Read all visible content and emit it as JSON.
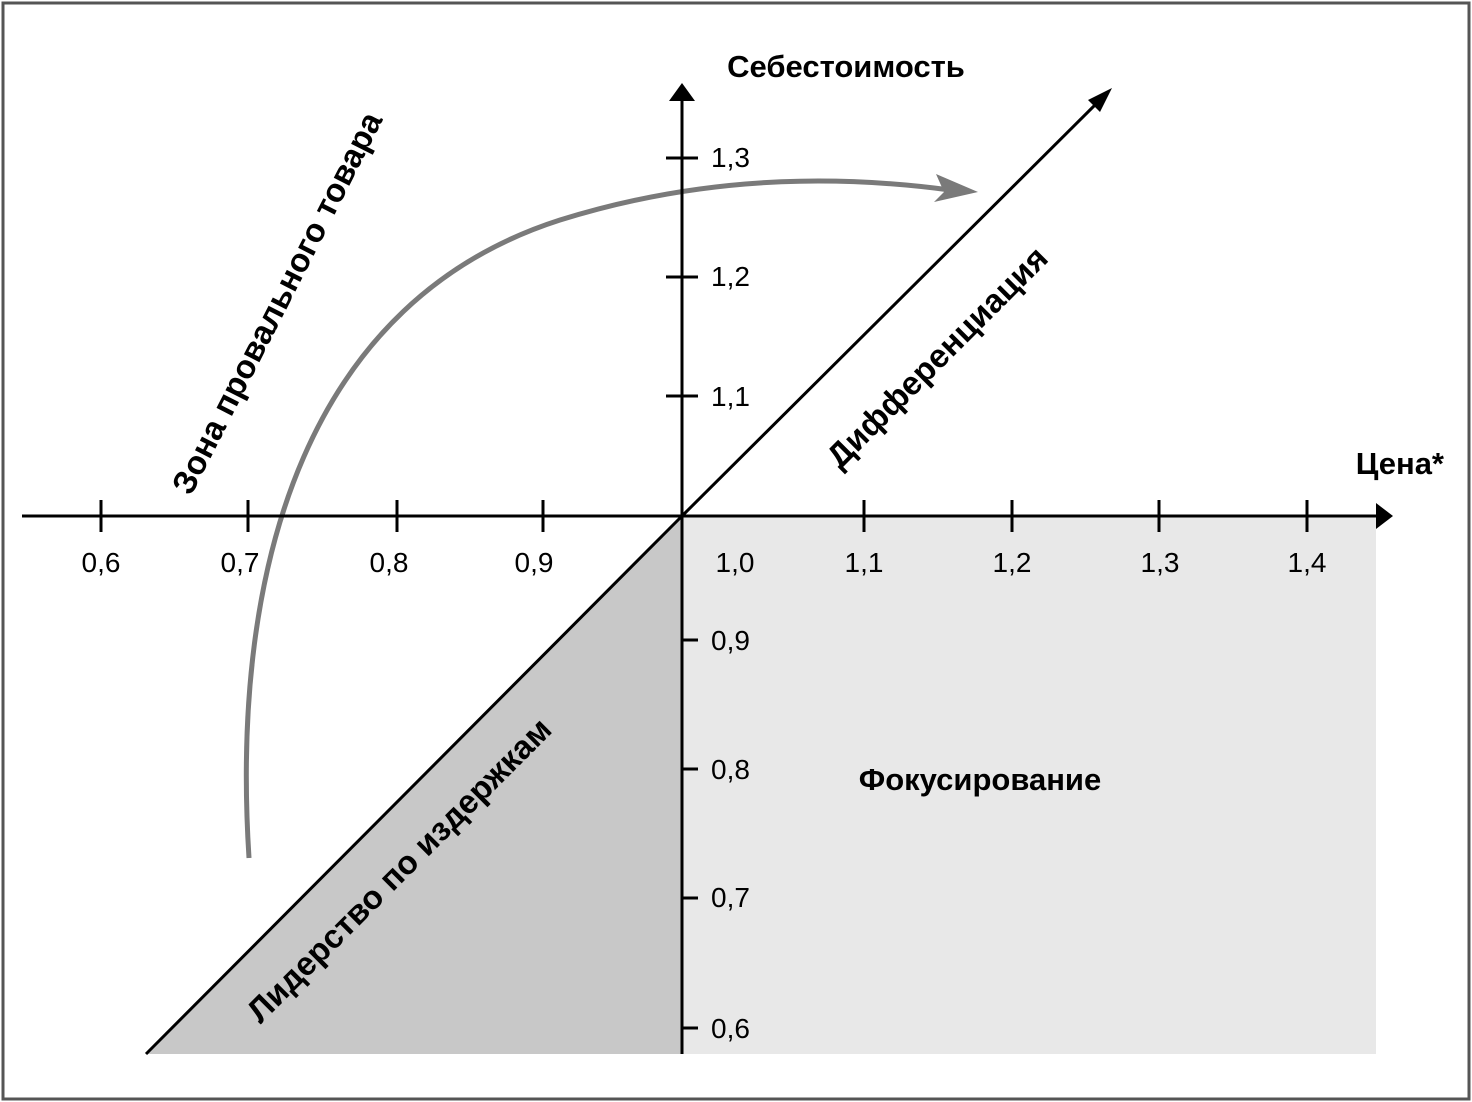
{
  "axes": {
    "x_title": "Цена*",
    "y_title": "Себестоимость",
    "x_ticks": [
      "0,6",
      "0,7",
      "0,8",
      "0,9",
      "1,0",
      "1,1",
      "1,2",
      "1,3",
      "1,4"
    ],
    "y_ticks_upper": [
      "1,1",
      "1,2",
      "1,3"
    ],
    "y_ticks_lower": [
      "0,9",
      "0,8",
      "0,7",
      "0,6"
    ]
  },
  "regions": {
    "failure_zone": "Зона провального товара",
    "differentiation": "Дифференциация",
    "cost_leadership": "Лидерство по издержкам",
    "focusing": "Фокусирование"
  },
  "colors": {
    "cost_leadership_fill": "#c8c8c8",
    "focusing_fill": "#e8e8e8",
    "arrow_curve": "#7a7a7a",
    "frame": "#555555"
  }
}
